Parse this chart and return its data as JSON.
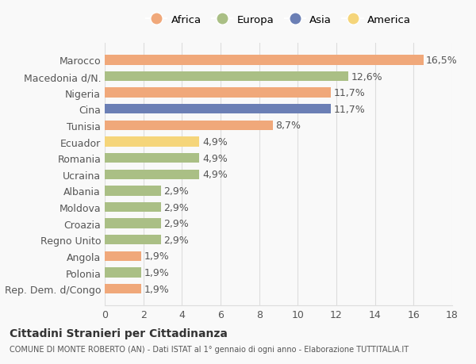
{
  "categories": [
    "Rep. Dem. d/Congo",
    "Polonia",
    "Angola",
    "Regno Unito",
    "Croazia",
    "Moldova",
    "Albania",
    "Ucraina",
    "Romania",
    "Ecuador",
    "Tunisia",
    "Cina",
    "Nigeria",
    "Macedonia d/N.",
    "Marocco"
  ],
  "values": [
    1.9,
    1.9,
    1.9,
    2.9,
    2.9,
    2.9,
    2.9,
    4.9,
    4.9,
    4.9,
    8.7,
    11.7,
    11.7,
    12.6,
    16.5
  ],
  "labels": [
    "1,9%",
    "1,9%",
    "1,9%",
    "2,9%",
    "2,9%",
    "2,9%",
    "2,9%",
    "4,9%",
    "4,9%",
    "4,9%",
    "8,7%",
    "11,7%",
    "11,7%",
    "12,6%",
    "16,5%"
  ],
  "continents": [
    "Africa",
    "Europa",
    "Africa",
    "Europa",
    "Europa",
    "Europa",
    "Europa",
    "Europa",
    "Europa",
    "America",
    "Africa",
    "Asia",
    "Africa",
    "Europa",
    "Africa"
  ],
  "colors": {
    "Africa": "#F0A87A",
    "Europa": "#AABF85",
    "Asia": "#6B7FB5",
    "America": "#F5D57A"
  },
  "legend_order": [
    "Africa",
    "Europa",
    "Asia",
    "America"
  ],
  "xlim": [
    0,
    18
  ],
  "xticks": [
    0,
    2,
    4,
    6,
    8,
    10,
    12,
    14,
    16,
    18
  ],
  "title": "Cittadini Stranieri per Cittadinanza",
  "subtitle": "COMUNE DI MONTE ROBERTO (AN) - Dati ISTAT al 1° gennaio di ogni anno - Elaborazione TUTTITALIA.IT",
  "background_color": "#f9f9f9",
  "bar_height": 0.6,
  "grid_color": "#dddddd",
  "label_fontsize": 9,
  "tick_fontsize": 9
}
